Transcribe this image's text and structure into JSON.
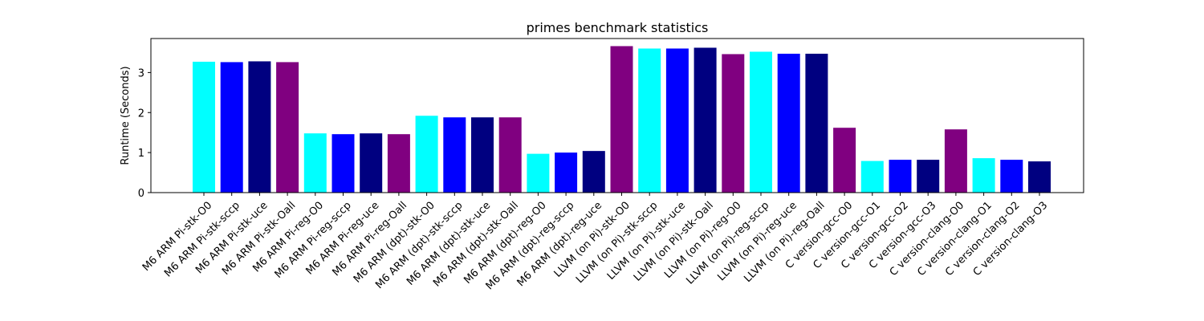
{
  "chart_data": {
    "type": "bar",
    "title": "primes benchmark statistics",
    "xlabel": "",
    "ylabel": "Runtime (Seconds)",
    "ylim": [
      0,
      3.85
    ],
    "yticks": [
      0,
      1,
      2,
      3
    ],
    "grid": false,
    "categories": [
      "M6 ARM Pi-stk-O0",
      "M6 ARM Pi-stk-sccp",
      "M6 ARM Pi-stk-uce",
      "M6 ARM Pi-stk-Oall",
      "M6 ARM Pi-reg-O0",
      "M6 ARM Pi-reg-sccp",
      "M6 ARM Pi-reg-uce",
      "M6 ARM Pi-reg-Oall",
      "M6 ARM (dpt)-stk-O0",
      "M6 ARM (dpt)-stk-sccp",
      "M6 ARM (dpt)-stk-uce",
      "M6 ARM (dpt)-stk-Oall",
      "M6 ARM (dpt)-reg-O0",
      "M6 ARM (dpt)-reg-sccp",
      "M6 ARM (dpt)-reg-uce",
      "LLVM (on Pi)-stk-O0",
      "LLVM (on Pi)-stk-sccp",
      "LLVM (on Pi)-stk-uce",
      "LLVM (on Pi)-stk-Oall",
      "LLVM (on Pi)-reg-O0",
      "LLVM (on Pi)-reg-sccp",
      "LLVM (on Pi)-reg-uce",
      "LLVM (on Pi)-reg-Oall",
      "C version-gcc-O0",
      "C version-gcc-O1",
      "C version-gcc-O2",
      "C version-gcc-O3",
      "C version-clang-O0",
      "C version-clang-O1",
      "C version-clang-O2",
      "C version-clang-O3"
    ],
    "values": [
      3.27,
      3.26,
      3.28,
      3.26,
      1.48,
      1.46,
      1.48,
      1.46,
      1.92,
      1.88,
      1.88,
      1.88,
      0.97,
      1.0,
      1.04,
      3.66,
      3.6,
      3.6,
      3.62,
      3.46,
      3.52,
      3.47,
      3.47,
      1.62,
      0.79,
      0.82,
      0.82,
      1.58,
      0.86,
      0.82,
      0.78
    ],
    "colors": [
      "#00FFFF",
      "#0000FF",
      "#000080",
      "#800080",
      "#00FFFF",
      "#0000FF",
      "#000080",
      "#800080",
      "#00FFFF",
      "#0000FF",
      "#000080",
      "#800080",
      "#00FFFF",
      "#0000FF",
      "#000080",
      "#800080",
      "#00FFFF",
      "#0000FF",
      "#000080",
      "#800080",
      "#00FFFF",
      "#0000FF",
      "#000080",
      "#800080",
      "#00FFFF",
      "#0000FF",
      "#000080",
      "#800080",
      "#00FFFF",
      "#0000FF",
      "#000080"
    ]
  }
}
